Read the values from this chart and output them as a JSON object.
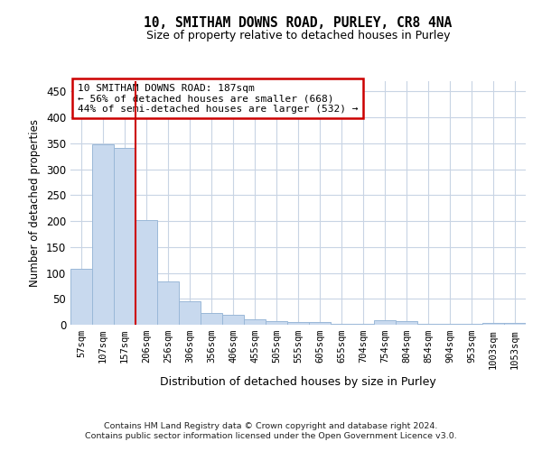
{
  "title1": "10, SMITHAM DOWNS ROAD, PURLEY, CR8 4NA",
  "title2": "Size of property relative to detached houses in Purley",
  "xlabel": "Distribution of detached houses by size in Purley",
  "ylabel": "Number of detached properties",
  "categories": [
    "57sqm",
    "107sqm",
    "157sqm",
    "206sqm",
    "256sqm",
    "306sqm",
    "356sqm",
    "406sqm",
    "455sqm",
    "505sqm",
    "555sqm",
    "605sqm",
    "655sqm",
    "704sqm",
    "754sqm",
    "804sqm",
    "854sqm",
    "904sqm",
    "953sqm",
    "1003sqm",
    "1053sqm"
  ],
  "values": [
    108,
    348,
    342,
    202,
    84,
    46,
    22,
    20,
    10,
    7,
    6,
    6,
    1,
    1,
    8,
    7,
    1,
    1,
    1,
    3,
    3
  ],
  "bar_color": "#c8d9ee",
  "bar_edgecolor": "#9ab8d8",
  "grid_color": "#c8d4e4",
  "vline_x": 2.5,
  "annotation_text1": "10 SMITHAM DOWNS ROAD: 187sqm",
  "annotation_text2": "← 56% of detached houses are smaller (668)",
  "annotation_text3": "44% of semi-detached houses are larger (532) →",
  "annotation_box_facecolor": "#ffffff",
  "annotation_box_edgecolor": "#cc0000",
  "vline_color": "#cc0000",
  "ylim": [
    0,
    470
  ],
  "yticks": [
    0,
    50,
    100,
    150,
    200,
    250,
    300,
    350,
    400,
    450
  ],
  "footnote1": "Contains HM Land Registry data © Crown copyright and database right 2024.",
  "footnote2": "Contains public sector information licensed under the Open Government Licence v3.0."
}
